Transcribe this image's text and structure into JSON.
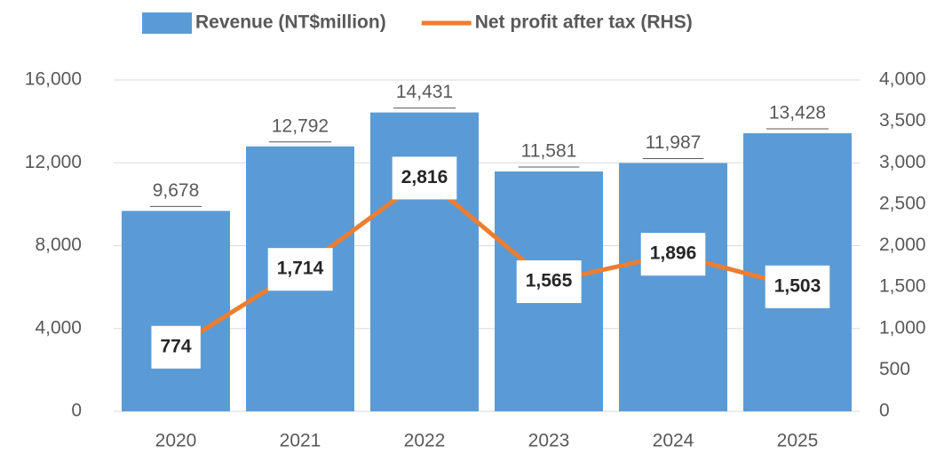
{
  "chart_data": {
    "type": "combo",
    "categories": [
      "2020",
      "2021",
      "2022",
      "2023",
      "2024",
      "2025"
    ],
    "series": [
      {
        "name": "Revenue (NT$million)",
        "type": "bar",
        "color": "#5b9bd5",
        "values": [
          9678,
          12792,
          14431,
          11581,
          11987,
          13428
        ],
        "value_labels": [
          "9,678",
          "12,792",
          "14,431",
          "11,581",
          "11,987",
          "13,428"
        ]
      },
      {
        "name": "Net profit after tax (RHS)",
        "type": "line",
        "axis": "y2",
        "color": "#ed7d31",
        "values": [
          774,
          1714,
          2816,
          1565,
          1896,
          1503
        ],
        "value_labels": [
          "774",
          "1,714",
          "2,816",
          "1,565",
          "1,896",
          "1,503"
        ]
      }
    ],
    "ylim": [
      0,
      16000
    ],
    "yticks": [
      0,
      {
        "value": 4000,
        "label": "4,000"
      },
      {
        "value": 8000,
        "label": "8,000"
      },
      {
        "value": 12000,
        "label": "12,000"
      },
      {
        "value": 16000,
        "label": "16,000"
      }
    ],
    "y2lim": [
      0,
      4000
    ],
    "y2ticks": [
      0,
      500,
      {
        "value": 1000,
        "label": "1,000"
      },
      {
        "value": 1500,
        "label": "1,500"
      },
      {
        "value": 2000,
        "label": "2,000"
      },
      {
        "value": 2500,
        "label": "2,500"
      },
      {
        "value": 3000,
        "label": "3,000"
      },
      {
        "value": 3500,
        "label": "3,500"
      },
      {
        "value": 4000,
        "label": "4,000"
      }
    ],
    "grid": true,
    "legend": "top"
  }
}
